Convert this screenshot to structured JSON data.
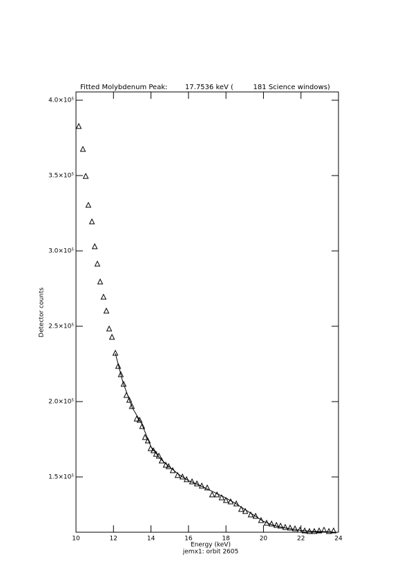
{
  "chart_data": {
    "type": "scatter",
    "title": "Fitted Molybdenum Peak:        17.7536 keV (         181 Science windows)",
    "x_label": "Energy (keV)",
    "subtitle": "jemx1: orbit 2605",
    "y_label": "Detector counts",
    "xlim": [
      10,
      24
    ],
    "xticks": [
      10,
      12,
      14,
      16,
      18,
      20,
      22,
      24
    ],
    "ylim": [
      113300,
      405500
    ],
    "yticks": [
      {
        "value": 150000,
        "label": "1.5×10⁵"
      },
      {
        "value": 200000,
        "label": "2.0×10⁵"
      },
      {
        "value": 250000,
        "label": "2.5×10⁵"
      },
      {
        "value": 300000,
        "label": "3.0×10⁵"
      },
      {
        "value": 350000,
        "label": "3.5×10⁵"
      },
      {
        "value": 400000,
        "label": "4.0×10⁵"
      }
    ],
    "series": [
      {
        "marker": "triangle",
        "color": "#000000",
        "x": [
          10.15,
          10.37,
          10.52,
          10.66,
          10.85,
          11.0,
          11.14,
          11.29,
          11.47,
          11.62,
          11.77,
          11.92,
          12.1,
          12.25,
          12.39,
          12.54,
          12.69,
          12.84,
          12.98,
          13.24,
          13.39,
          13.53,
          13.68,
          13.83,
          13.98,
          14.13,
          14.27,
          14.42,
          14.57,
          14.79,
          14.94,
          15.16,
          15.42,
          15.68,
          15.9,
          16.19,
          16.45,
          16.71,
          17.0,
          17.26,
          17.52,
          17.77,
          18.0,
          18.25,
          18.55,
          18.81,
          19.03,
          19.32,
          19.58,
          19.87,
          20.17,
          20.43,
          20.69,
          20.91,
          21.16,
          21.42,
          21.68,
          21.94,
          22.2,
          22.45,
          22.71,
          22.97,
          23.23,
          23.49,
          23.74
        ],
        "values": [
          382600,
          367400,
          349500,
          330300,
          319300,
          302800,
          291300,
          279400,
          269300,
          260100,
          248200,
          242700,
          232100,
          223400,
          217900,
          211500,
          204100,
          200900,
          196800,
          188500,
          187600,
          183500,
          176200,
          173900,
          168800,
          167400,
          165100,
          163800,
          160600,
          157800,
          156900,
          154200,
          151000,
          150000,
          148200,
          146800,
          145400,
          144000,
          142700,
          138100,
          138100,
          136200,
          134400,
          133500,
          132100,
          128500,
          127100,
          124800,
          123900,
          121100,
          119300,
          118800,
          117900,
          117400,
          116500,
          116100,
          115600,
          114700,
          114200,
          113800,
          113800,
          114200,
          114700,
          113800,
          114200
        ]
      },
      {
        "marker": "line",
        "color": "#000000",
        "x": [
          12.1,
          12.5,
          13,
          13.5,
          14,
          14.5,
          15,
          15.5,
          16,
          16.5,
          17,
          17.5,
          18,
          18.5,
          19,
          19.5,
          20,
          20.5,
          21,
          21.5,
          22,
          22.5,
          23,
          23.7
        ],
        "values": [
          232000,
          213000,
          196000,
          185500,
          170000,
          162000,
          156500,
          151500,
          147500,
          145000,
          142000,
          139000,
          136000,
          132500,
          128500,
          124500,
          120500,
          118000,
          116500,
          115500,
          114500,
          114000,
          113800,
          113500
        ]
      }
    ]
  }
}
